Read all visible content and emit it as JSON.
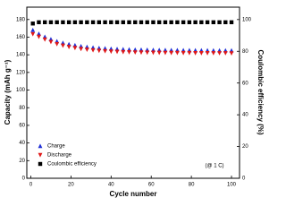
{
  "chart_data": {
    "type": "scatter",
    "xlabel": "Cycle number",
    "ylabel": "Capacity (mAh g⁻¹)",
    "y2label": "Coulombic efficiency (%)",
    "annotation": "(@ 1 C)",
    "x": [
      1,
      4,
      7,
      10,
      13,
      16,
      19,
      22,
      25,
      28,
      31,
      34,
      37,
      40,
      43,
      46,
      49,
      52,
      55,
      58,
      61,
      64,
      67,
      70,
      73,
      76,
      79,
      82,
      85,
      88,
      91,
      94,
      97,
      100
    ],
    "series": [
      {
        "name": "Charge",
        "color": "#1f2fd6",
        "marker": "triangle-up",
        "values": [
          168,
          163.8,
          160.4,
          157.6,
          155.3,
          153.5,
          152,
          150.8,
          149.7,
          148.9,
          148.2,
          147.6,
          147.2,
          146.8,
          146.5,
          146.2,
          146,
          145.8,
          145.7,
          145.6,
          145.5,
          145.4,
          145.3,
          145.2,
          145.2,
          145.1,
          145.1,
          145,
          145,
          145,
          144.9,
          144.9,
          144.9,
          144.8
        ]
      },
      {
        "name": "Discharge",
        "color": "#e01818",
        "marker": "triangle-down",
        "values": [
          163.5,
          160.5,
          157.4,
          154.6,
          152.3,
          150.5,
          149,
          147.8,
          146.7,
          145.9,
          145.2,
          144.6,
          144.2,
          143.8,
          143.5,
          143.2,
          143,
          142.8,
          142.7,
          142.6,
          142.5,
          142.4,
          142.3,
          142.2,
          142.2,
          142.1,
          142.1,
          142,
          142,
          142,
          141.9,
          141.9,
          141.9,
          141.8
        ]
      },
      {
        "name": "Coulombic efficiency",
        "color": "#000000",
        "marker": "square",
        "axis": "y2",
        "values": [
          97.5,
          98.3,
          98.3,
          98.3,
          98.3,
          98.3,
          98.3,
          98.3,
          98.3,
          98.3,
          98.3,
          98.3,
          98.3,
          98.3,
          98.3,
          98.3,
          98.3,
          98.3,
          98.3,
          98.3,
          98.3,
          98.3,
          98.3,
          98.3,
          98.3,
          98.3,
          98.3,
          98.3,
          98.3,
          98.3,
          98.3,
          98.3,
          98.3,
          98.3
        ]
      }
    ],
    "xlim": [
      -2,
      104
    ],
    "xticks": [
      0,
      20,
      40,
      60,
      80,
      100
    ],
    "ylim": [
      0,
      194
    ],
    "yticks": [
      0,
      20,
      40,
      60,
      80,
      100,
      120,
      140,
      160,
      180
    ],
    "y2lim": [
      0,
      107.8
    ],
    "y2ticks": [
      0,
      20,
      40,
      60,
      80,
      100
    ],
    "legend": "lower left"
  }
}
